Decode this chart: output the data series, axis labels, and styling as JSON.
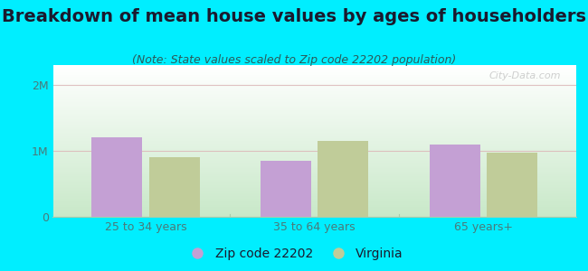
{
  "title": "Breakdown of mean house values by ages of householders",
  "subtitle": "(Note: State values scaled to Zip code 22202 population)",
  "categories": [
    "25 to 34 years",
    "35 to 64 years",
    "65 years+"
  ],
  "zip_values": [
    1200000,
    850000,
    1100000
  ],
  "state_values": [
    900000,
    1150000,
    970000
  ],
  "zip_color": "#c4a0d4",
  "state_color": "#c0cc99",
  "background_outer": "#00eeff",
  "grad_top": "#ffffff",
  "grad_bottom": "#c8e8c8",
  "grid_color": "#ddbbbb",
  "yticks": [
    0,
    1000000,
    2000000
  ],
  "ytick_labels": [
    "0",
    "1M",
    "2M"
  ],
  "ylim": [
    0,
    2300000
  ],
  "legend_zip_label": "Zip code 22202",
  "legend_state_label": "Virginia",
  "watermark": "City-Data.com",
  "title_fontsize": 14,
  "subtitle_fontsize": 9,
  "tick_fontsize": 9,
  "legend_fontsize": 10,
  "title_color": "#1a1a2e",
  "subtitle_color": "#2a5a5a",
  "tick_color": "#4a7a7a"
}
